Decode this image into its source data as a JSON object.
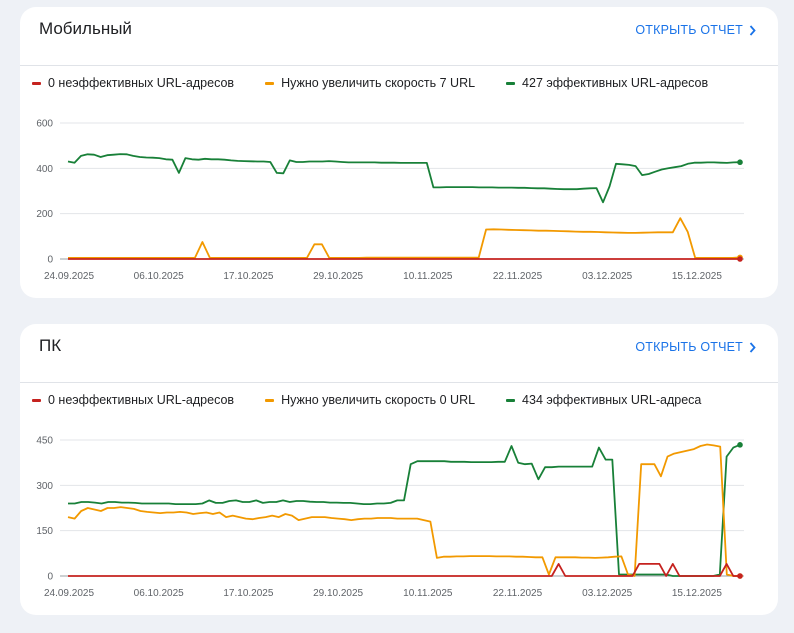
{
  "colors": {
    "red": "#c5221f",
    "orange": "#f29900",
    "green": "#188038",
    "link": "#1a73e8"
  },
  "cards": [
    {
      "title": "Мобильный",
      "open_report_label": "ОТКРЫТЬ ОТЧЕТ",
      "legend": [
        {
          "label": "0 неэффективных URL-адресов",
          "color": "#c5221f"
        },
        {
          "label": "Нужно увеличить скорость 7 URL",
          "color": "#f29900"
        },
        {
          "label": "427 эффективных URL-адресов",
          "color": "#188038"
        }
      ]
    },
    {
      "title": "ПК",
      "open_report_label": "ОТКРЫТЬ ОТЧЕТ",
      "legend": [
        {
          "label": "0 неэффективных URL-адресов",
          "color": "#c5221f"
        },
        {
          "label": "Нужно увеличить скорость 0 URL",
          "color": "#f29900"
        },
        {
          "label": "434 эффективных URL-адреса",
          "color": "#188038"
        }
      ]
    }
  ],
  "chart_data": [
    {
      "type": "line",
      "title": "",
      "x_labels": [
        "24.09.2025",
        "06.10.2025",
        "17.10.2025",
        "29.10.2025",
        "10.11.2025",
        "22.11.2025",
        "03.12.2025",
        "15.12.2025"
      ],
      "y_ticks": [
        0,
        200,
        400,
        600
      ],
      "ylim": [
        0,
        600
      ],
      "grid": true,
      "series": [
        {
          "name": "0 неэффективных URL-адресов",
          "color": "#c5221f",
          "values": [
            0,
            0,
            0,
            0,
            0,
            0,
            0,
            0,
            0,
            0,
            0,
            0,
            0,
            0,
            0,
            0,
            0,
            0,
            0,
            0,
            0,
            0,
            0,
            0,
            0,
            0,
            0,
            0,
            0,
            0,
            0,
            0,
            0,
            0,
            0,
            0,
            0,
            0,
            0,
            0,
            0,
            0,
            0,
            0,
            0,
            0,
            0,
            0,
            0,
            0,
            0,
            0,
            0,
            0,
            0,
            0,
            0,
            0,
            0,
            0,
            0,
            0,
            0,
            0,
            0,
            0,
            0,
            0,
            0,
            0,
            0,
            0,
            0,
            0,
            0,
            0,
            0,
            0,
            0,
            0,
            0,
            0,
            0,
            0,
            0,
            0,
            0,
            0,
            0
          ]
        },
        {
          "name": "Нужно увеличить скорость 7 URL",
          "color": "#f29900",
          "values": [
            5,
            5,
            5,
            5,
            5,
            5,
            5,
            5,
            5,
            5,
            5,
            5,
            5,
            5,
            5,
            5,
            5,
            5,
            75,
            5,
            5,
            5,
            5,
            5,
            5,
            5,
            5,
            5,
            5,
            5,
            5,
            5,
            5,
            65,
            65,
            5,
            5,
            5,
            5,
            5,
            6,
            6,
            6,
            6,
            6,
            6,
            6,
            6,
            6,
            6,
            6,
            6,
            6,
            6,
            6,
            6,
            130,
            131,
            130,
            129,
            128,
            127,
            126,
            125,
            125,
            124,
            123,
            122,
            121,
            120,
            120,
            119,
            118,
            117,
            116,
            115,
            115,
            116,
            117,
            118,
            118,
            118,
            180,
            120,
            5,
            5,
            5,
            5,
            5,
            5,
            7
          ]
        },
        {
          "name": "427 эффективных URL-адресов",
          "color": "#188038",
          "values": [
            430,
            425,
            455,
            462,
            460,
            450,
            458,
            460,
            463,
            462,
            455,
            450,
            448,
            447,
            445,
            440,
            438,
            380,
            445,
            440,
            438,
            442,
            440,
            440,
            438,
            435,
            433,
            432,
            431,
            430,
            430,
            428,
            380,
            378,
            435,
            428,
            428,
            430,
            430,
            430,
            432,
            430,
            428,
            426,
            426,
            426,
            426,
            426,
            425,
            425,
            425,
            424,
            424,
            424,
            424,
            424,
            316,
            316,
            317,
            317,
            317,
            317,
            317,
            316,
            316,
            316,
            315,
            315,
            315,
            314,
            314,
            313,
            312,
            312,
            310,
            309,
            308,
            308,
            308,
            310,
            312,
            313,
            250,
            320,
            420,
            418,
            415,
            410,
            370,
            375,
            385,
            395,
            400,
            405,
            410,
            420,
            425,
            425,
            426,
            426,
            425,
            424,
            426,
            427
          ]
        }
      ]
    },
    {
      "type": "line",
      "title": "",
      "x_labels": [
        "24.09.2025",
        "06.10.2025",
        "17.10.2025",
        "29.10.2025",
        "10.11.2025",
        "22.11.2025",
        "03.12.2025",
        "15.12.2025"
      ],
      "y_ticks": [
        0,
        150,
        300,
        450
      ],
      "ylim": [
        0,
        480
      ],
      "grid": true,
      "series": [
        {
          "name": "0 неэффективных URL-адресов",
          "color": "#c5221f",
          "values": [
            0,
            0,
            0,
            0,
            0,
            0,
            0,
            0,
            0,
            0,
            0,
            0,
            0,
            0,
            0,
            0,
            0,
            0,
            0,
            0,
            0,
            0,
            0,
            0,
            0,
            0,
            0,
            0,
            0,
            0,
            0,
            0,
            0,
            0,
            0,
            0,
            0,
            0,
            0,
            0,
            0,
            0,
            0,
            0,
            0,
            0,
            0,
            0,
            0,
            0,
            0,
            0,
            0,
            0,
            0,
            0,
            0,
            0,
            0,
            0,
            0,
            0,
            0,
            0,
            0,
            0,
            0,
            0,
            0,
            0,
            0,
            0,
            0,
            40,
            0,
            0,
            0,
            0,
            0,
            0,
            0,
            0,
            0,
            0,
            0,
            40,
            40,
            40,
            40,
            0,
            40,
            0,
            0,
            0,
            0,
            0,
            0,
            0,
            40,
            0,
            0
          ]
        },
        {
          "name": "Нужно увеличить скорость 0 URL",
          "color": "#f29900",
          "values": [
            195,
            190,
            215,
            225,
            220,
            215,
            225,
            225,
            228,
            225,
            222,
            215,
            212,
            210,
            208,
            210,
            210,
            212,
            210,
            205,
            208,
            210,
            205,
            210,
            195,
            200,
            195,
            190,
            188,
            192,
            195,
            200,
            195,
            205,
            200,
            185,
            190,
            195,
            195,
            195,
            192,
            190,
            188,
            185,
            188,
            190,
            190,
            192,
            192,
            192,
            190,
            190,
            190,
            190,
            185,
            180,
            60,
            64,
            64,
            65,
            65,
            66,
            66,
            66,
            66,
            65,
            65,
            65,
            64,
            64,
            63,
            62,
            62,
            5,
            62,
            62,
            62,
            62,
            61,
            61,
            60,
            61,
            62,
            64,
            65,
            5,
            0,
            370,
            370,
            370,
            330,
            395,
            405,
            410,
            415,
            420,
            430,
            435,
            432,
            428,
            5,
            0,
            0
          ]
        },
        {
          "name": "434 эффективных URL-адреса",
          "color": "#188038",
          "values": [
            240,
            240,
            245,
            245,
            243,
            240,
            245,
            245,
            243,
            243,
            242,
            240,
            240,
            240,
            240,
            240,
            238,
            238,
            238,
            238,
            240,
            250,
            242,
            242,
            248,
            250,
            245,
            245,
            250,
            242,
            245,
            245,
            250,
            245,
            248,
            248,
            246,
            245,
            245,
            243,
            243,
            242,
            242,
            240,
            238,
            238,
            240,
            240,
            242,
            250,
            250,
            370,
            380,
            380,
            380,
            380,
            380,
            378,
            378,
            378,
            377,
            377,
            377,
            377,
            378,
            378,
            430,
            375,
            370,
            372,
            320,
            360,
            360,
            362,
            362,
            362,
            362,
            362,
            362,
            425,
            385,
            385,
            5,
            5,
            5,
            5,
            5,
            5,
            5,
            5,
            0,
            0,
            0,
            0,
            0,
            0,
            0,
            5,
            395,
            425,
            434
          ]
        }
      ]
    }
  ]
}
